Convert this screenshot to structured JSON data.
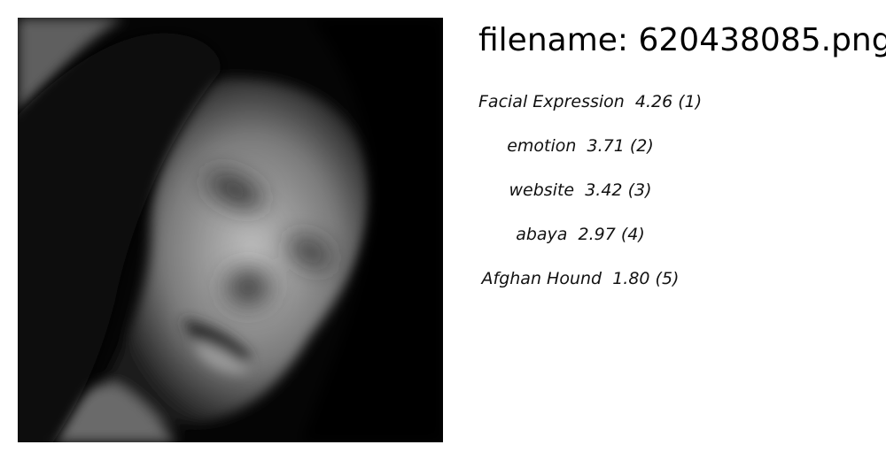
{
  "filename_text": "filename: 620438085.png",
  "tags": [
    {
      "label": "Facial Expression",
      "score": "4.26",
      "rank": "(1)"
    },
    {
      "label": "emotion",
      "score": "3.71",
      "rank": "(2)"
    },
    {
      "label": "website",
      "score": "3.42",
      "rank": "(3)"
    },
    {
      "label": "abaya",
      "score": "2.97",
      "rank": "(4)"
    },
    {
      "label": "Afghan Hound",
      "score": "1.80",
      "rank": "(5)"
    }
  ],
  "colors": {
    "background": "#ffffff",
    "text": "#000000",
    "photo_dark": "#050505",
    "photo_light": "#c8c8c8"
  }
}
